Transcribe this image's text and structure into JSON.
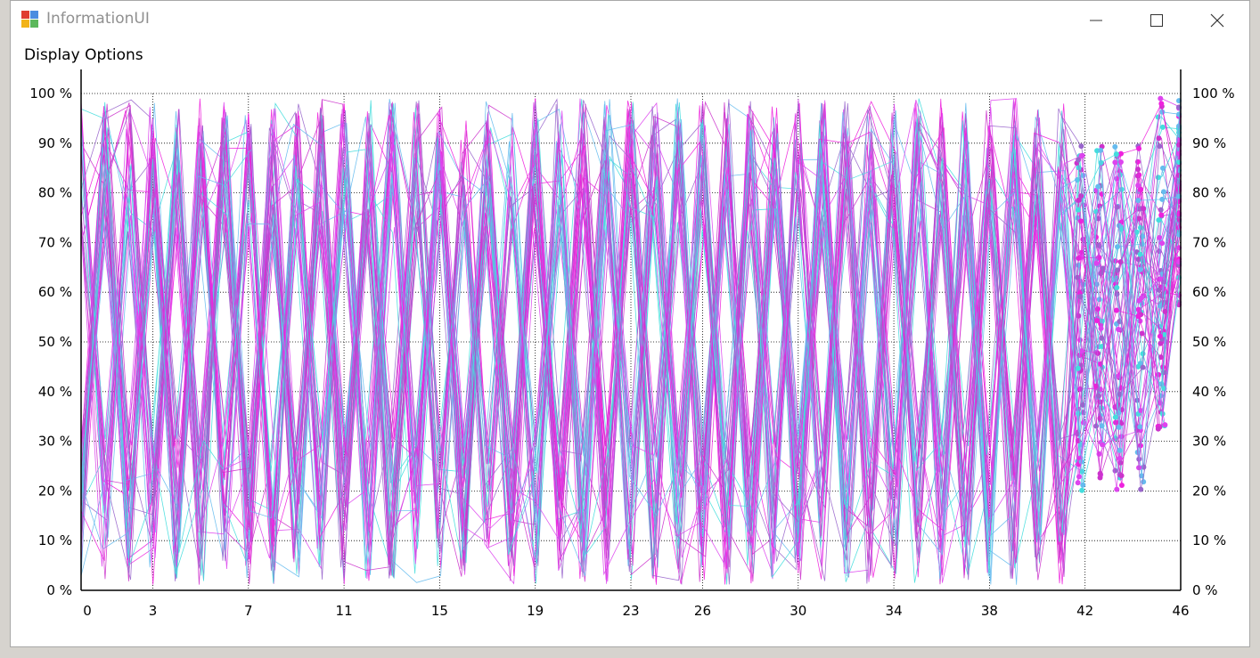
{
  "window": {
    "title": "InformationUI",
    "minimize_glyph": "—",
    "maximize_glyph": "☐",
    "close_glyph": "✕"
  },
  "menu": {
    "display_options": "Display Options"
  },
  "colors": {
    "series": [
      "#ee22dd",
      "#cc33cc",
      "#9966cc",
      "#44dddd",
      "#66bbee",
      "#dd44ee"
    ],
    "axis": "#000000",
    "grid": "#000000",
    "background": "#ffffff"
  },
  "chart_data": {
    "type": "line",
    "series_count": 60,
    "xlim": [
      0,
      46
    ],
    "ylim": [
      0,
      100
    ],
    "x_tick_labels": [
      "0",
      "3",
      "7",
      "11",
      "15",
      "19",
      "23",
      "26",
      "30",
      "34",
      "38",
      "42",
      "46"
    ],
    "y_tick_labels": [
      "0 %",
      "10 %",
      "20 %",
      "30 %",
      "40 %",
      "50 %",
      "60 %",
      "70 %",
      "80 %",
      "90 %",
      "100 %"
    ],
    "y_tick_values": [
      0,
      10,
      20,
      30,
      40,
      50,
      60,
      70,
      80,
      90,
      100
    ],
    "grid": "dotted",
    "legend": "none",
    "dense_region": {
      "x_range": [
        41,
        46
      ],
      "y_range": [
        10,
        100
      ],
      "description_markers": "circle"
    },
    "sample_series": [
      {
        "x": [
          0,
          1,
          2,
          3,
          4,
          5,
          6,
          7,
          8,
          9,
          10,
          11,
          12,
          13,
          14,
          15,
          16,
          17,
          18,
          19,
          20,
          21,
          22,
          23,
          24,
          25,
          26,
          27,
          28,
          29,
          30,
          31,
          32,
          33,
          34,
          35,
          36,
          37,
          38,
          39,
          40
        ],
        "y": [
          70,
          88,
          10,
          95,
          5,
          90,
          12,
          96,
          8,
          92,
          15,
          98,
          20,
          94,
          6,
          97,
          10,
          85,
          14,
          99,
          8,
          92,
          18,
          90,
          12,
          95,
          5,
          88,
          20,
          93,
          7,
          96,
          10,
          90,
          15,
          94,
          8,
          92,
          10,
          88,
          12
        ]
      },
      {
        "x": [
          0,
          1,
          2,
          3,
          4,
          5,
          6,
          7,
          8,
          9,
          10,
          11,
          12,
          13,
          14,
          15,
          16,
          17,
          18,
          19,
          20,
          21,
          22,
          23,
          24,
          25,
          26,
          27,
          28,
          29,
          30,
          31,
          32,
          33,
          34,
          35,
          36,
          37,
          38,
          39,
          40
        ],
        "y": [
          10,
          95,
          20,
          90,
          6,
          88,
          15,
          92,
          10,
          96,
          8,
          85,
          12,
          98,
          20,
          90,
          5,
          94,
          10,
          88,
          18,
          97,
          8,
          90,
          14,
          92,
          6,
          95,
          12,
          89,
          10,
          98,
          8,
          90,
          16,
          93,
          5,
          96,
          12,
          88,
          10
        ]
      }
    ]
  }
}
